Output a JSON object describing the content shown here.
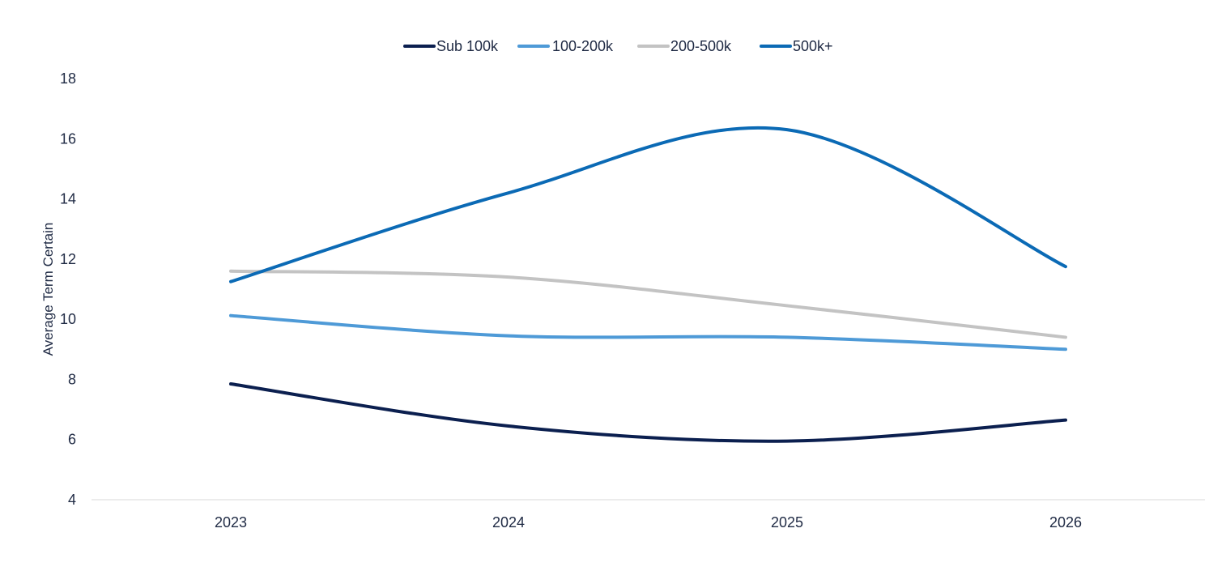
{
  "chart_data": {
    "type": "line",
    "title": "",
    "xlabel": "",
    "ylabel": "Average Term Certain",
    "categories": [
      "2023",
      "2024",
      "2025",
      "2026"
    ],
    "ylim": [
      4,
      18
    ],
    "yticks": [
      4,
      6,
      8,
      10,
      12,
      14,
      16,
      18
    ],
    "grid": false,
    "legend_position": "top-center",
    "series": [
      {
        "name": "Sub 100k",
        "color": "#0b1f4f",
        "values": [
          7.85,
          6.45,
          5.95,
          6.65
        ]
      },
      {
        "name": "100-200k",
        "color": "#4e9ad7",
        "values": [
          10.12,
          9.45,
          9.4,
          9.0
        ]
      },
      {
        "name": "200-500k",
        "color": "#c3c3c3",
        "values": [
          11.6,
          11.4,
          10.45,
          9.4
        ]
      },
      {
        "name": "500k+",
        "color": "#0b6ab5",
        "values": [
          11.25,
          14.2,
          16.3,
          11.75
        ]
      }
    ]
  }
}
